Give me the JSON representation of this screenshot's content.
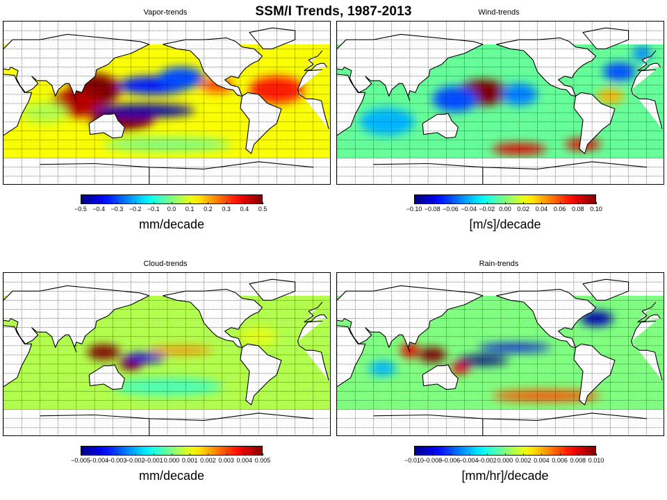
{
  "title": "SSM/I Trends, 1987-2013",
  "panels": [
    {
      "id": "vapor",
      "title": "Vapor-trends",
      "units": "mm/decade",
      "colorbar_ticks": [
        "−0.5",
        "−0.4",
        "−0.3",
        "−0.2",
        "−0.1",
        "0.0",
        "0.1",
        "0.2",
        "0.3",
        "0.4",
        "0.5"
      ],
      "background_value": 0.12,
      "anomalies": [
        {
          "lon": 120,
          "lat": 15,
          "value": 0.5,
          "rlon": 28,
          "rlat": 18
        },
        {
          "lon": 100,
          "lat": 0,
          "value": 0.45,
          "rlon": 28,
          "rlat": 15
        },
        {
          "lon": 150,
          "lat": -18,
          "value": 0.5,
          "rlon": 35,
          "rlat": 12
        },
        {
          "lon": 185,
          "lat": 20,
          "value": -0.35,
          "rlon": 40,
          "rlat": 10
        },
        {
          "lon": 175,
          "lat": -8,
          "value": -0.45,
          "rlon": 55,
          "rlat": 7
        },
        {
          "lon": 215,
          "lat": 28,
          "value": -0.3,
          "rlon": 25,
          "rlat": 12
        },
        {
          "lon": 255,
          "lat": 20,
          "value": 0.3,
          "rlon": 18,
          "rlat": 8
        },
        {
          "lon": 320,
          "lat": 15,
          "value": 0.35,
          "rlon": 30,
          "rlat": 15
        },
        {
          "lon": 65,
          "lat": -10,
          "value": 0.05,
          "rlon": 25,
          "rlat": 12
        },
        {
          "lon": 200,
          "lat": -45,
          "value": 0.0,
          "rlon": 70,
          "rlat": 8
        }
      ]
    },
    {
      "id": "wind",
      "title": "Wind-trends",
      "units": "[m/s]/decade",
      "colorbar_ticks": [
        "−0.10",
        "−0.08",
        "−0.06",
        "−0.04",
        "−0.02",
        "0.00",
        "0.02",
        "0.04",
        "0.06",
        "0.08",
        "0.10"
      ],
      "background_value": -0.005,
      "anomalies": [
        {
          "lon": 180,
          "lat": 12,
          "value": 0.1,
          "rlon": 28,
          "rlat": 14
        },
        {
          "lon": 150,
          "lat": 5,
          "value": -0.06,
          "rlon": 25,
          "rlat": 14
        },
        {
          "lon": 220,
          "lat": 10,
          "value": -0.05,
          "rlon": 20,
          "rlat": 12
        },
        {
          "lon": 330,
          "lat": 35,
          "value": -0.06,
          "rlon": 18,
          "rlat": 10
        },
        {
          "lon": 320,
          "lat": 8,
          "value": 0.04,
          "rlon": 15,
          "rlat": 8
        },
        {
          "lon": 220,
          "lat": -50,
          "value": 0.08,
          "rlon": 30,
          "rlat": 6
        },
        {
          "lon": 290,
          "lat": -45,
          "value": 0.08,
          "rlon": 20,
          "rlat": 6
        },
        {
          "lon": 75,
          "lat": -20,
          "value": -0.04,
          "rlon": 30,
          "rlat": 15
        },
        {
          "lon": 355,
          "lat": 55,
          "value": -0.05,
          "rlon": 10,
          "rlat": 8
        }
      ]
    },
    {
      "id": "cloud",
      "title": "Cloud-trends",
      "units": "mm/decade",
      "colorbar_ticks": [
        "−0.005",
        "−0.004",
        "−0.003",
        "−0.002",
        "−0.001",
        "0.000",
        "0.001",
        "0.002",
        "0.003",
        "0.004",
        "0.005"
      ],
      "background_value": 0.0005,
      "anomalies": [
        {
          "lon": 130,
          "lat": 3,
          "value": 0.005,
          "rlon": 18,
          "rlat": 8
        },
        {
          "lon": 160,
          "lat": -10,
          "value": 0.005,
          "rlon": 12,
          "rlat": 8
        },
        {
          "lon": 175,
          "lat": -3,
          "value": -0.004,
          "rlon": 22,
          "rlat": 5
        },
        {
          "lon": 215,
          "lat": 5,
          "value": 0.0025,
          "rlon": 35,
          "rlat": 4
        },
        {
          "lon": 300,
          "lat": 20,
          "value": 0.001,
          "rlon": 20,
          "rlat": 10
        },
        {
          "lon": 200,
          "lat": -35,
          "value": -0.0005,
          "rlon": 60,
          "rlat": 10
        }
      ]
    },
    {
      "id": "rain",
      "title": "Rain-trends",
      "units": "[mm/hr]/decade",
      "colorbar_ticks": [
        "−0.010",
        "−0.008",
        "−0.006",
        "−0.004",
        "−0.002",
        "0.000",
        "0.002",
        "0.004",
        "0.006",
        "0.008",
        "0.010"
      ],
      "background_value": 0.0,
      "anomalies": [
        {
          "lon": 125,
          "lat": 0,
          "value": 0.01,
          "rlon": 15,
          "rlat": 8
        },
        {
          "lon": 100,
          "lat": 5,
          "value": 0.008,
          "rlon": 10,
          "rlat": 8
        },
        {
          "lon": 180,
          "lat": -6,
          "value": -0.01,
          "rlon": 28,
          "rlat": 5
        },
        {
          "lon": 215,
          "lat": 8,
          "value": -0.008,
          "rlon": 40,
          "rlat": 4
        },
        {
          "lon": 155,
          "lat": -15,
          "value": 0.008,
          "rlon": 10,
          "rlat": 6
        },
        {
          "lon": 305,
          "lat": 40,
          "value": -0.009,
          "rlon": 18,
          "rlat": 8
        },
        {
          "lon": 250,
          "lat": -45,
          "value": 0.006,
          "rlon": 60,
          "rlat": 6
        },
        {
          "lon": 70,
          "lat": -15,
          "value": -0.004,
          "rlon": 15,
          "rlat": 8
        }
      ]
    }
  ]
}
